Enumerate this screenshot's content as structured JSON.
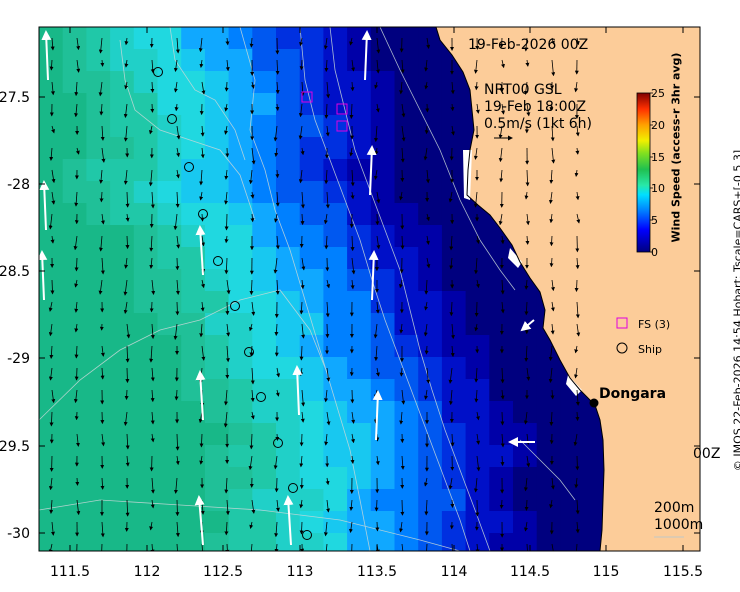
{
  "title": "19-Feb-2026 00Z",
  "forecast": {
    "model": "NRT00 GSL",
    "time": "19-Feb 18:00Z",
    "scale_label": "0.5m/s (1kt 6h)"
  },
  "place": {
    "name": "Dongara"
  },
  "x_ticks": [
    "111.5",
    "112",
    "112.5",
    "113",
    "113.5",
    "114",
    "114.5",
    "115",
    "115.5"
  ],
  "y_ticks": [
    "-27.5",
    "-28",
    "-28.5",
    "-29",
    "-29.5",
    "-30"
  ],
  "colorbar": {
    "title": "Wind Speed (access-r 3hr avg)",
    "ticks": [
      "25",
      "20",
      "15",
      "10",
      "5",
      "0"
    ],
    "min": 0,
    "max": 25
  },
  "legend": {
    "fs": "FS (3)",
    "ship": "Ship"
  },
  "depth_labels": [
    "200m",
    "1000m"
  ],
  "cut_label": "00Z",
  "credit": "© IMOS 22-Feb-2026 14:54 Hobart; Tscale=CARS+[-0.5 3]",
  "colors": {
    "land": "#fccc99",
    "coast": "#000000",
    "fs_marker": "#e000e0"
  }
}
